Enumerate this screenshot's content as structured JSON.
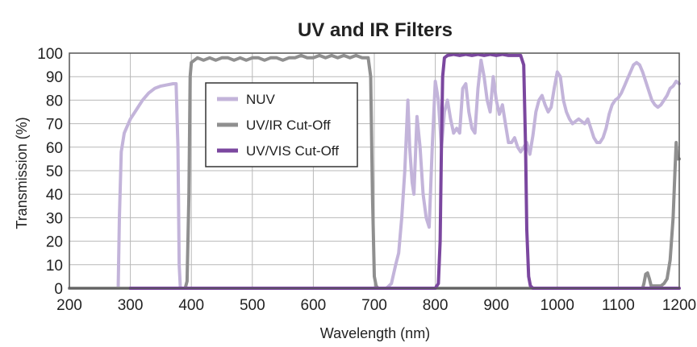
{
  "chart_data": {
    "type": "line",
    "title": "UV and IR Filters",
    "xlabel": "Wavelength (nm)",
    "ylabel": "Transmission (%)",
    "xlim": [
      200,
      1200
    ],
    "ylim": [
      0,
      100
    ],
    "xticks": [
      "200",
      "300",
      "400",
      "500",
      "600",
      "700",
      "800",
      "900",
      "1000",
      "1100",
      "1200"
    ],
    "yticks": [
      "0",
      "10",
      "20",
      "30",
      "40",
      "50",
      "60",
      "70",
      "80",
      "90",
      "100"
    ],
    "grid": true,
    "legend": "upper-left-inside",
    "series": [
      {
        "name": "NUV",
        "color": "#c3b4da",
        "points": [
          [
            200,
            0
          ],
          [
            280,
            0
          ],
          [
            282,
            30
          ],
          [
            285,
            58
          ],
          [
            290,
            66
          ],
          [
            300,
            72
          ],
          [
            310,
            76
          ],
          [
            320,
            80
          ],
          [
            330,
            83
          ],
          [
            340,
            85
          ],
          [
            350,
            86
          ],
          [
            360,
            86.5
          ],
          [
            370,
            87
          ],
          [
            375,
            87
          ],
          [
            378,
            60
          ],
          [
            380,
            10
          ],
          [
            382,
            0
          ],
          [
            720,
            0
          ],
          [
            728,
            2
          ],
          [
            735,
            10
          ],
          [
            740,
            15
          ],
          [
            745,
            30
          ],
          [
            750,
            50
          ],
          [
            755,
            80
          ],
          [
            758,
            60
          ],
          [
            762,
            45
          ],
          [
            765,
            40
          ],
          [
            770,
            73
          ],
          [
            775,
            60
          ],
          [
            780,
            40
          ],
          [
            785,
            30
          ],
          [
            790,
            26
          ],
          [
            795,
            60
          ],
          [
            800,
            88
          ],
          [
            805,
            80
          ],
          [
            810,
            60
          ],
          [
            815,
            75
          ],
          [
            820,
            80
          ],
          [
            825,
            72
          ],
          [
            830,
            66
          ],
          [
            835,
            68
          ],
          [
            840,
            66
          ],
          [
            845,
            85
          ],
          [
            850,
            87
          ],
          [
            855,
            75
          ],
          [
            860,
            68
          ],
          [
            865,
            66
          ],
          [
            870,
            85
          ],
          [
            875,
            97
          ],
          [
            880,
            90
          ],
          [
            885,
            80
          ],
          [
            890,
            75
          ],
          [
            895,
            90
          ],
          [
            900,
            80
          ],
          [
            905,
            74
          ],
          [
            910,
            78
          ],
          [
            915,
            70
          ],
          [
            920,
            62
          ],
          [
            925,
            62
          ],
          [
            930,
            64
          ],
          [
            935,
            60
          ],
          [
            940,
            58
          ],
          [
            945,
            60
          ],
          [
            950,
            62
          ],
          [
            955,
            57
          ],
          [
            960,
            65
          ],
          [
            965,
            75
          ],
          [
            970,
            80
          ],
          [
            975,
            82
          ],
          [
            980,
            78
          ],
          [
            985,
            75
          ],
          [
            990,
            77
          ],
          [
            995,
            85
          ],
          [
            1000,
            92
          ],
          [
            1005,
            90
          ],
          [
            1010,
            80
          ],
          [
            1015,
            75
          ],
          [
            1020,
            72
          ],
          [
            1025,
            70
          ],
          [
            1030,
            71
          ],
          [
            1035,
            72
          ],
          [
            1040,
            71
          ],
          [
            1045,
            70
          ],
          [
            1050,
            72
          ],
          [
            1055,
            68
          ],
          [
            1060,
            64
          ],
          [
            1065,
            62
          ],
          [
            1070,
            62
          ],
          [
            1075,
            64
          ],
          [
            1080,
            68
          ],
          [
            1085,
            74
          ],
          [
            1090,
            78
          ],
          [
            1095,
            80
          ],
          [
            1100,
            81
          ],
          [
            1105,
            83
          ],
          [
            1110,
            86
          ],
          [
            1115,
            89
          ],
          [
            1120,
            92
          ],
          [
            1125,
            95
          ],
          [
            1130,
            96
          ],
          [
            1135,
            95
          ],
          [
            1140,
            92
          ],
          [
            1145,
            88
          ],
          [
            1150,
            84
          ],
          [
            1155,
            80
          ],
          [
            1160,
            78
          ],
          [
            1165,
            77
          ],
          [
            1170,
            78
          ],
          [
            1175,
            80
          ],
          [
            1180,
            82
          ],
          [
            1185,
            85
          ],
          [
            1190,
            86
          ],
          [
            1195,
            88
          ],
          [
            1200,
            87
          ]
        ]
      },
      {
        "name": "UV/IR Cut-Off",
        "color": "#8f8f8f",
        "points": [
          [
            200,
            0
          ],
          [
            390,
            0
          ],
          [
            393,
            3
          ],
          [
            396,
            40
          ],
          [
            398,
            90
          ],
          [
            400,
            96
          ],
          [
            410,
            98
          ],
          [
            420,
            97
          ],
          [
            430,
            98
          ],
          [
            440,
            97
          ],
          [
            450,
            98
          ],
          [
            460,
            98
          ],
          [
            470,
            97
          ],
          [
            480,
            98
          ],
          [
            490,
            97
          ],
          [
            500,
            98
          ],
          [
            510,
            98
          ],
          [
            520,
            97
          ],
          [
            530,
            98
          ],
          [
            540,
            98
          ],
          [
            550,
            97
          ],
          [
            560,
            98
          ],
          [
            570,
            98
          ],
          [
            580,
            99
          ],
          [
            590,
            98
          ],
          [
            600,
            98
          ],
          [
            610,
            99
          ],
          [
            620,
            98
          ],
          [
            630,
            99
          ],
          [
            640,
            98
          ],
          [
            650,
            99
          ],
          [
            660,
            98
          ],
          [
            670,
            99
          ],
          [
            680,
            98
          ],
          [
            690,
            98
          ],
          [
            694,
            90
          ],
          [
            697,
            40
          ],
          [
            700,
            5
          ],
          [
            703,
            1
          ],
          [
            706,
            0
          ],
          [
            1140,
            0
          ],
          [
            1142,
            2
          ],
          [
            1145,
            6
          ],
          [
            1148,
            6.5
          ],
          [
            1151,
            4
          ],
          [
            1154,
            1
          ],
          [
            1160,
            1
          ],
          [
            1170,
            1
          ],
          [
            1175,
            2
          ],
          [
            1180,
            4
          ],
          [
            1185,
            12
          ],
          [
            1190,
            30
          ],
          [
            1193,
            50
          ],
          [
            1195,
            62
          ],
          [
            1197,
            55
          ],
          [
            1200,
            55
          ]
        ]
      },
      {
        "name": "UV/VIS Cut-Off",
        "color": "#7b479f",
        "points": [
          [
            300,
            0
          ],
          [
            800,
            0
          ],
          [
            805,
            2
          ],
          [
            808,
            20
          ],
          [
            810,
            60
          ],
          [
            812,
            90
          ],
          [
            815,
            98
          ],
          [
            820,
            99
          ],
          [
            830,
            99.5
          ],
          [
            840,
            99
          ],
          [
            850,
            99.5
          ],
          [
            860,
            99
          ],
          [
            870,
            99.5
          ],
          [
            880,
            99
          ],
          [
            890,
            99.5
          ],
          [
            900,
            99
          ],
          [
            910,
            99.5
          ],
          [
            920,
            99
          ],
          [
            930,
            99
          ],
          [
            940,
            99
          ],
          [
            945,
            95
          ],
          [
            948,
            60
          ],
          [
            950,
            25
          ],
          [
            953,
            5
          ],
          [
            956,
            1
          ],
          [
            960,
            0
          ],
          [
            1200,
            0
          ]
        ]
      }
    ]
  }
}
